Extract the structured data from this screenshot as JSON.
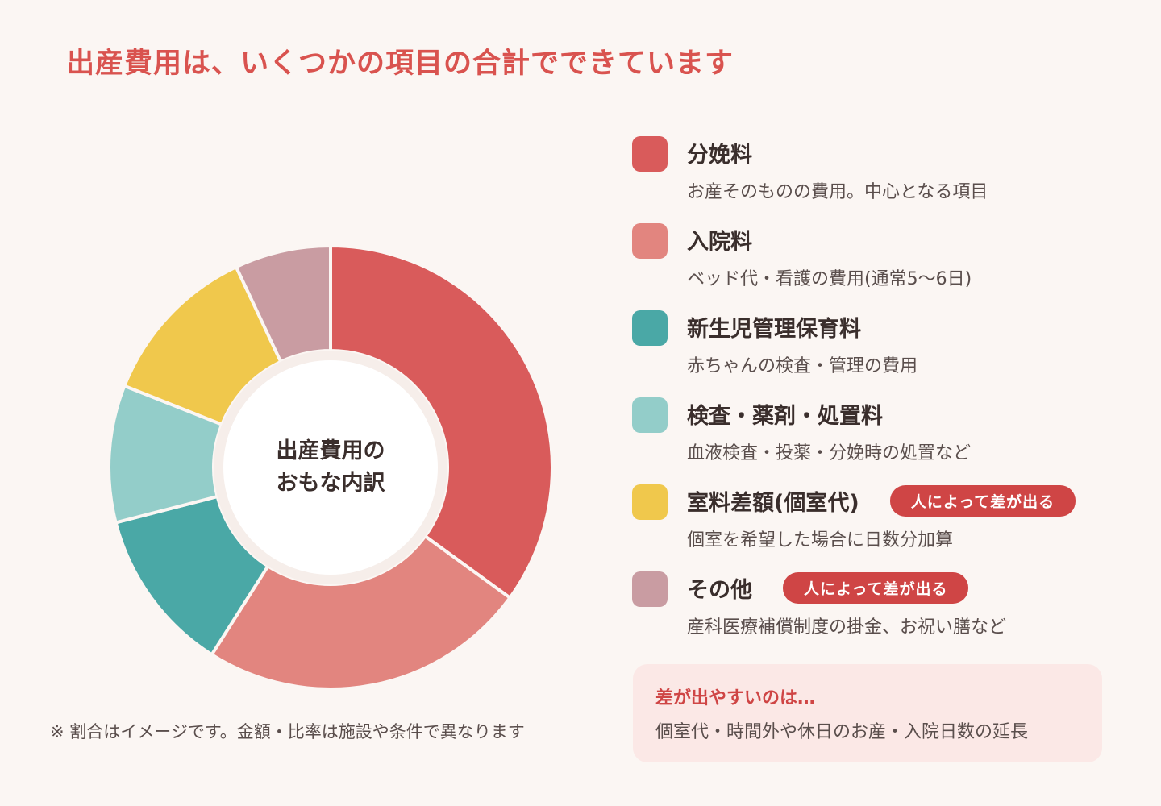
{
  "title": "出産費用は、いくつかの項目の合計でできています",
  "chart_data": {
    "type": "pie",
    "categories": [
      "分娩料",
      "入院料",
      "新生児管理保育料",
      "検査・薬剤・処置料",
      "室料差額(個室代)",
      "その他"
    ],
    "values": [
      35,
      24,
      12,
      10,
      12,
      7
    ],
    "colors": [
      "#d95b5b",
      "#e2857f",
      "#4aa8a6",
      "#93cdc9",
      "#f0c84c",
      "#c99ca2"
    ],
    "center_label": [
      "出産費用の",
      "おもな内訳"
    ]
  },
  "legend": [
    {
      "name": "分娩料",
      "desc": "お産そのものの費用。中心となる項目",
      "color": "#d95b5b",
      "badge": ""
    },
    {
      "name": "入院料",
      "desc": "ベッド代・看護の費用(通常5〜6日)",
      "color": "#e2857f",
      "badge": ""
    },
    {
      "name": "新生児管理保育料",
      "desc": "赤ちゃんの検査・管理の費用",
      "color": "#4aa8a6",
      "badge": ""
    },
    {
      "name": "検査・薬剤・処置料",
      "desc": "血液検査・投薬・分娩時の処置など",
      "color": "#93cdc9",
      "badge": ""
    },
    {
      "name": "室料差額(個室代)",
      "desc": "個室を希望した場合に日数分加算",
      "color": "#f0c84c",
      "badge": "人によって差が出る"
    },
    {
      "name": "その他",
      "desc": "産科医療補償制度の掛金、お祝い膳など",
      "color": "#c99ca2",
      "badge": "人によって差が出る"
    }
  ],
  "note": "※ 割合はイメージです。金額・比率は施設や条件で異なります",
  "callout": {
    "title": "差が出やすいのは…",
    "text": "個室代・時間外や休日のお産・入院日数の延長"
  }
}
